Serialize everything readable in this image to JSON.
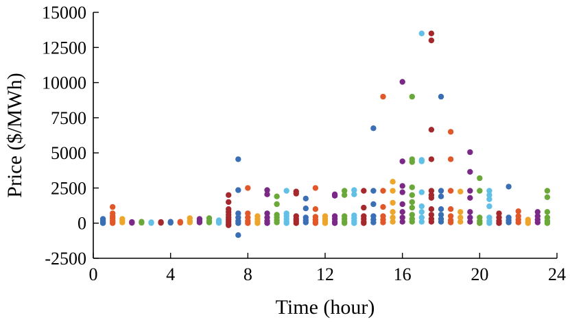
{
  "chart_data": {
    "type": "scatter",
    "xlabel": "Time (hour)",
    "ylabel": "Price ($/MWh)",
    "xlim": [
      0,
      24
    ],
    "ylim": [
      -2500,
      15000
    ],
    "xticks": [
      0,
      4,
      8,
      12,
      16,
      20,
      24
    ],
    "yticks": [
      -2500,
      0,
      2500,
      5000,
      7500,
      10000,
      12500,
      15000
    ],
    "xtick_labels": [
      "0",
      "4",
      "8",
      "12",
      "16",
      "20",
      "24"
    ],
    "ytick_labels": [
      "-2500",
      "0",
      "2500",
      "5000",
      "7500",
      "10000",
      "12500",
      "15000"
    ],
    "grid": false,
    "colors": [
      "#3a6fb5",
      "#e0582a",
      "#eea52c",
      "#7a2a86",
      "#6aa83a",
      "#62bfe6",
      "#a5292c"
    ],
    "points": [
      [
        0.5,
        300,
        0
      ],
      [
        0.5,
        150,
        0
      ],
      [
        0.5,
        50,
        0
      ],
      [
        0.5,
        0,
        0
      ],
      [
        1.0,
        1150,
        1
      ],
      [
        1.0,
        700,
        1
      ],
      [
        1.0,
        500,
        1
      ],
      [
        1.0,
        350,
        1
      ],
      [
        1.0,
        200,
        1
      ],
      [
        1.0,
        100,
        1
      ],
      [
        1.0,
        0,
        1
      ],
      [
        1.5,
        300,
        2
      ],
      [
        1.5,
        150,
        2
      ],
      [
        1.5,
        50,
        2
      ],
      [
        2.0,
        80,
        3
      ],
      [
        2.0,
        20,
        3
      ],
      [
        2.5,
        100,
        4
      ],
      [
        2.5,
        30,
        4
      ],
      [
        3.0,
        60,
        5
      ],
      [
        3.0,
        10,
        5
      ],
      [
        3.5,
        80,
        6
      ],
      [
        3.5,
        20,
        6
      ],
      [
        4.0,
        100,
        0
      ],
      [
        4.0,
        30,
        0
      ],
      [
        4.5,
        100,
        1
      ],
      [
        4.5,
        30,
        1
      ],
      [
        5.0,
        350,
        2
      ],
      [
        5.0,
        150,
        2
      ],
      [
        5.0,
        50,
        2
      ],
      [
        5.5,
        300,
        3
      ],
      [
        5.5,
        150,
        3
      ],
      [
        5.5,
        50,
        3
      ],
      [
        6.0,
        350,
        4
      ],
      [
        6.0,
        150,
        4
      ],
      [
        6.0,
        50,
        4
      ],
      [
        6.5,
        200,
        5
      ],
      [
        6.5,
        100,
        5
      ],
      [
        6.5,
        20,
        5
      ],
      [
        7.0,
        2000,
        6
      ],
      [
        7.0,
        1500,
        6
      ],
      [
        7.0,
        1000,
        6
      ],
      [
        7.0,
        800,
        6
      ],
      [
        7.0,
        600,
        6
      ],
      [
        7.0,
        400,
        6
      ],
      [
        7.0,
        250,
        6
      ],
      [
        7.0,
        100,
        6
      ],
      [
        7.0,
        -50,
        6
      ],
      [
        7.0,
        -150,
        6
      ],
      [
        7.5,
        4550,
        0
      ],
      [
        7.5,
        2350,
        0
      ],
      [
        7.5,
        700,
        0
      ],
      [
        7.5,
        400,
        0
      ],
      [
        7.5,
        150,
        0
      ],
      [
        7.5,
        0,
        0
      ],
      [
        7.5,
        -850,
        0
      ],
      [
        8.0,
        2500,
        1
      ],
      [
        8.0,
        700,
        1
      ],
      [
        8.0,
        400,
        1
      ],
      [
        8.0,
        150,
        1
      ],
      [
        8.0,
        0,
        1
      ],
      [
        8.5,
        500,
        2
      ],
      [
        8.5,
        300,
        2
      ],
      [
        8.5,
        100,
        2
      ],
      [
        8.5,
        0,
        2
      ],
      [
        9.0,
        2350,
        3
      ],
      [
        9.0,
        2050,
        3
      ],
      [
        9.0,
        700,
        3
      ],
      [
        9.0,
        400,
        3
      ],
      [
        9.0,
        150,
        3
      ],
      [
        9.0,
        0,
        3
      ],
      [
        9.5,
        1900,
        4
      ],
      [
        9.5,
        1350,
        4
      ],
      [
        9.5,
        600,
        4
      ],
      [
        9.5,
        400,
        4
      ],
      [
        9.5,
        200,
        4
      ],
      [
        9.5,
        50,
        4
      ],
      [
        10.0,
        2300,
        5
      ],
      [
        10.0,
        700,
        5
      ],
      [
        10.0,
        500,
        5
      ],
      [
        10.0,
        300,
        5
      ],
      [
        10.0,
        100,
        5
      ],
      [
        10.0,
        0,
        5
      ],
      [
        10.5,
        2250,
        6
      ],
      [
        10.5,
        2100,
        6
      ],
      [
        10.5,
        500,
        6
      ],
      [
        10.5,
        300,
        6
      ],
      [
        10.5,
        150,
        6
      ],
      [
        10.5,
        0,
        6
      ],
      [
        11.0,
        1750,
        0
      ],
      [
        11.0,
        1050,
        0
      ],
      [
        11.0,
        400,
        0
      ],
      [
        11.0,
        200,
        0
      ],
      [
        11.0,
        50,
        0
      ],
      [
        11.5,
        2500,
        1
      ],
      [
        11.5,
        1000,
        1
      ],
      [
        11.5,
        450,
        1
      ],
      [
        11.5,
        250,
        1
      ],
      [
        11.5,
        100,
        1
      ],
      [
        11.5,
        0,
        1
      ],
      [
        12.0,
        500,
        2
      ],
      [
        12.0,
        300,
        2
      ],
      [
        12.0,
        150,
        2
      ],
      [
        12.0,
        0,
        2
      ],
      [
        12.5,
        2050,
        3
      ],
      [
        12.5,
        1950,
        3
      ],
      [
        12.5,
        500,
        3
      ],
      [
        12.5,
        300,
        3
      ],
      [
        12.5,
        100,
        3
      ],
      [
        12.5,
        0,
        3
      ],
      [
        13.0,
        2300,
        4
      ],
      [
        13.0,
        2000,
        4
      ],
      [
        13.0,
        500,
        4
      ],
      [
        13.0,
        300,
        4
      ],
      [
        13.0,
        100,
        4
      ],
      [
        13.0,
        0,
        4
      ],
      [
        13.5,
        2350,
        5
      ],
      [
        13.5,
        2050,
        5
      ],
      [
        13.5,
        550,
        5
      ],
      [
        13.5,
        350,
        5
      ],
      [
        13.5,
        150,
        5
      ],
      [
        13.5,
        0,
        5
      ],
      [
        14.0,
        2300,
        6
      ],
      [
        14.0,
        1100,
        6
      ],
      [
        14.0,
        500,
        6
      ],
      [
        14.0,
        300,
        6
      ],
      [
        14.0,
        100,
        6
      ],
      [
        14.0,
        0,
        6
      ],
      [
        14.5,
        6750,
        0
      ],
      [
        14.5,
        2300,
        0
      ],
      [
        14.5,
        1350,
        0
      ],
      [
        14.5,
        500,
        0
      ],
      [
        14.5,
        250,
        0
      ],
      [
        14.5,
        50,
        0
      ],
      [
        15.0,
        9000,
        1
      ],
      [
        15.0,
        2300,
        1
      ],
      [
        15.0,
        1150,
        1
      ],
      [
        15.0,
        500,
        1
      ],
      [
        15.0,
        250,
        1
      ],
      [
        15.0,
        50,
        1
      ],
      [
        15.5,
        2950,
        2
      ],
      [
        15.5,
        2300,
        2
      ],
      [
        15.5,
        1450,
        2
      ],
      [
        15.5,
        800,
        2
      ],
      [
        15.5,
        400,
        2
      ],
      [
        15.5,
        100,
        2
      ],
      [
        16.0,
        10050,
        3
      ],
      [
        16.0,
        4400,
        3
      ],
      [
        16.0,
        2650,
        3
      ],
      [
        16.0,
        2200,
        3
      ],
      [
        16.0,
        1350,
        3
      ],
      [
        16.0,
        800,
        3
      ],
      [
        16.0,
        400,
        3
      ],
      [
        16.0,
        100,
        3
      ],
      [
        16.5,
        9000,
        4
      ],
      [
        16.5,
        4550,
        4
      ],
      [
        16.5,
        4350,
        4
      ],
      [
        16.5,
        2550,
        4
      ],
      [
        16.5,
        2000,
        4
      ],
      [
        16.5,
        1500,
        4
      ],
      [
        16.5,
        1100,
        4
      ],
      [
        16.5,
        600,
        4
      ],
      [
        16.5,
        300,
        4
      ],
      [
        16.5,
        100,
        4
      ],
      [
        17.0,
        13500,
        5
      ],
      [
        17.0,
        4500,
        5
      ],
      [
        17.0,
        4400,
        5
      ],
      [
        17.0,
        2200,
        5
      ],
      [
        17.0,
        1200,
        5
      ],
      [
        17.0,
        800,
        5
      ],
      [
        17.0,
        400,
        5
      ],
      [
        17.0,
        100,
        5
      ],
      [
        17.5,
        13500,
        6
      ],
      [
        17.5,
        13000,
        6
      ],
      [
        17.5,
        6650,
        6
      ],
      [
        17.5,
        4550,
        6
      ],
      [
        17.5,
        2300,
        6
      ],
      [
        17.5,
        2000,
        6
      ],
      [
        17.5,
        1800,
        6
      ],
      [
        17.5,
        1000,
        6
      ],
      [
        17.5,
        600,
        6
      ],
      [
        17.5,
        300,
        6
      ],
      [
        17.5,
        100,
        6
      ],
      [
        18.0,
        9000,
        0
      ],
      [
        18.0,
        2300,
        0
      ],
      [
        18.0,
        1900,
        0
      ],
      [
        18.0,
        1000,
        0
      ],
      [
        18.0,
        600,
        0
      ],
      [
        18.0,
        300,
        0
      ],
      [
        18.0,
        100,
        0
      ],
      [
        18.5,
        6500,
        1
      ],
      [
        18.5,
        4550,
        1
      ],
      [
        18.5,
        2300,
        1
      ],
      [
        18.5,
        1000,
        1
      ],
      [
        18.5,
        500,
        1
      ],
      [
        18.5,
        200,
        1
      ],
      [
        18.5,
        50,
        1
      ],
      [
        19.0,
        2250,
        2
      ],
      [
        19.0,
        800,
        2
      ],
      [
        19.0,
        400,
        2
      ],
      [
        19.0,
        100,
        2
      ],
      [
        19.5,
        5050,
        3
      ],
      [
        19.5,
        3650,
        3
      ],
      [
        19.5,
        2300,
        3
      ],
      [
        19.5,
        1800,
        3
      ],
      [
        19.5,
        800,
        3
      ],
      [
        19.5,
        400,
        3
      ],
      [
        19.5,
        100,
        3
      ],
      [
        20.0,
        3200,
        4
      ],
      [
        20.0,
        2300,
        4
      ],
      [
        20.0,
        400,
        4
      ],
      [
        20.0,
        150,
        4
      ],
      [
        20.0,
        0,
        4
      ],
      [
        20.5,
        2300,
        5
      ],
      [
        20.5,
        2000,
        5
      ],
      [
        20.5,
        1700,
        5
      ],
      [
        20.5,
        1200,
        5
      ],
      [
        20.5,
        400,
        5
      ],
      [
        20.5,
        150,
        5
      ],
      [
        20.5,
        0,
        5
      ],
      [
        21.0,
        700,
        6
      ],
      [
        21.0,
        400,
        6
      ],
      [
        21.0,
        150,
        6
      ],
      [
        21.0,
        0,
        6
      ],
      [
        21.5,
        2600,
        0
      ],
      [
        21.5,
        400,
        0
      ],
      [
        21.5,
        200,
        0
      ],
      [
        21.5,
        50,
        0
      ],
      [
        22.0,
        850,
        1
      ],
      [
        22.0,
        500,
        1
      ],
      [
        22.0,
        250,
        1
      ],
      [
        22.0,
        50,
        1
      ],
      [
        22.5,
        250,
        2
      ],
      [
        22.5,
        100,
        2
      ],
      [
        22.5,
        0,
        2
      ],
      [
        23.0,
        800,
        3
      ],
      [
        23.0,
        500,
        3
      ],
      [
        23.0,
        250,
        3
      ],
      [
        23.0,
        50,
        3
      ],
      [
        23.5,
        2300,
        4
      ],
      [
        23.5,
        1850,
        4
      ],
      [
        23.5,
        800,
        4
      ],
      [
        23.5,
        400,
        4
      ],
      [
        23.5,
        150,
        4
      ],
      [
        23.5,
        0,
        4
      ]
    ]
  }
}
